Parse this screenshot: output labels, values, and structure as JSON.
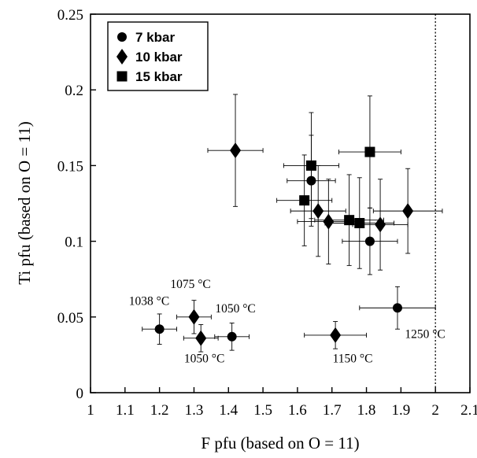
{
  "chart_data": {
    "type": "scatter",
    "xlabel": "F pfu  (based on O = 11)",
    "ylabel": "Ti pfu  (based on O = 11)",
    "xlim": [
      1,
      2.1
    ],
    "ylim": [
      0,
      0.25
    ],
    "x_ticks": [
      "1",
      "1.1",
      "1.2",
      "1.3",
      "1.4",
      "1.5",
      "1.6",
      "1.7",
      "1.8",
      "1.9",
      "2",
      "2.1"
    ],
    "y_ticks": [
      "0",
      "0.05",
      "0.1",
      "0.15",
      "0.2",
      "0.25"
    ],
    "reference_line": {
      "x": 2.0,
      "style": "dotted"
    },
    "legend_position": "top-left",
    "grid": false,
    "series": [
      {
        "name": "7 kbar",
        "marker": "circle",
        "points": [
          {
            "x": 1.2,
            "y": 0.042,
            "xerr": 0.05,
            "yerr": 0.01
          },
          {
            "x": 1.41,
            "y": 0.037,
            "xerr": 0.05,
            "yerr": 0.009
          },
          {
            "x": 1.64,
            "y": 0.14,
            "xerr": 0.07,
            "yerr": 0.03
          },
          {
            "x": 1.81,
            "y": 0.1,
            "xerr": 0.08,
            "yerr": 0.022
          },
          {
            "x": 1.89,
            "y": 0.056,
            "xerr": 0.11,
            "yerr": 0.014
          }
        ]
      },
      {
        "name": "10 kbar",
        "marker": "diamond",
        "points": [
          {
            "x": 1.42,
            "y": 0.16,
            "xerr": 0.08,
            "yerr": 0.037
          },
          {
            "x": 1.3,
            "y": 0.05,
            "xerr": 0.05,
            "yerr": 0.011
          },
          {
            "x": 1.32,
            "y": 0.036,
            "xerr": 0.05,
            "yerr": 0.009
          },
          {
            "x": 1.71,
            "y": 0.038,
            "xerr": 0.09,
            "yerr": 0.009
          },
          {
            "x": 1.66,
            "y": 0.12,
            "xerr": 0.08,
            "yerr": 0.03
          },
          {
            "x": 1.69,
            "y": 0.113,
            "xerr": 0.09,
            "yerr": 0.028
          },
          {
            "x": 1.84,
            "y": 0.111,
            "xerr": 0.08,
            "yerr": 0.03
          },
          {
            "x": 1.92,
            "y": 0.12,
            "xerr": 0.1,
            "yerr": 0.028
          }
        ]
      },
      {
        "name": "15 kbar",
        "marker": "square",
        "points": [
          {
            "x": 1.64,
            "y": 0.15,
            "xerr": 0.08,
            "yerr": 0.035
          },
          {
            "x": 1.62,
            "y": 0.127,
            "xerr": 0.08,
            "yerr": 0.03
          },
          {
            "x": 1.81,
            "y": 0.159,
            "xerr": 0.09,
            "yerr": 0.037
          },
          {
            "x": 1.75,
            "y": 0.114,
            "xerr": 0.1,
            "yerr": 0.03
          },
          {
            "x": 1.78,
            "y": 0.112,
            "xerr": 0.1,
            "yerr": 0.03
          }
        ]
      }
    ],
    "annotations": [
      {
        "text": "1075 °C",
        "x": 1.29,
        "y": 0.069
      },
      {
        "text": "1038 °C",
        "x": 1.17,
        "y": 0.058
      },
      {
        "text": "1050 °C",
        "x": 1.42,
        "y": 0.053
      },
      {
        "text": "1050 °C",
        "x": 1.33,
        "y": 0.02
      },
      {
        "text": "1150 °C",
        "x": 1.76,
        "y": 0.02
      },
      {
        "text": "1250 °C",
        "x": 1.97,
        "y": 0.036
      }
    ]
  }
}
